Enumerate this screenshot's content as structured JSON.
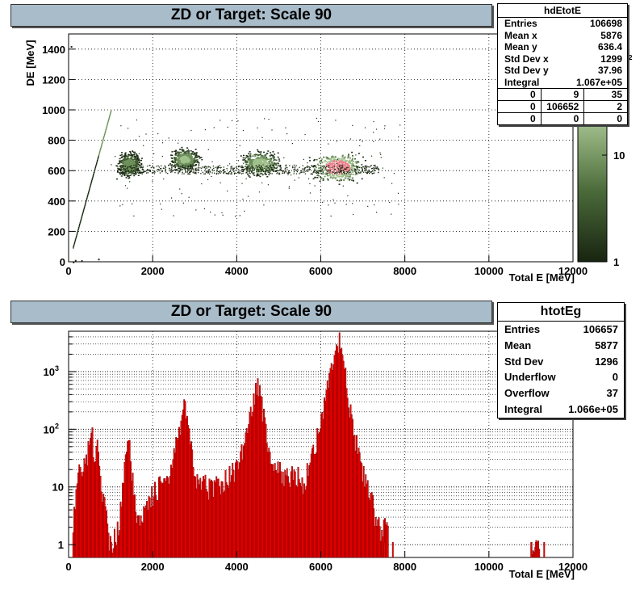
{
  "colors": {
    "title_bg": "#a9bcc9",
    "hist_fill": "#ff0000",
    "palette_low": "#1a2a12",
    "palette_high": "#9fbf8a",
    "peak_hot": "#e87080"
  },
  "top_panel": {
    "title": "ZD or Target: Scale 90",
    "stats": {
      "name": "hdEtotE",
      "rows": [
        {
          "label": "Entries",
          "value": "106698"
        },
        {
          "label": "Mean x",
          "value": "5876"
        },
        {
          "label": "Mean y",
          "value": "636.4"
        },
        {
          "label": "Std Dev x",
          "value": "1299"
        },
        {
          "label": "Std Dev y",
          "value": "37.96"
        },
        {
          "label": "Integral",
          "value": "1.067e+05"
        }
      ],
      "grid": [
        [
          "0",
          "9",
          "35"
        ],
        [
          "0",
          "106652",
          "2"
        ],
        [
          "0",
          "0",
          "0"
        ]
      ]
    },
    "palette": {
      "labels": [
        "10",
        "1"
      ],
      "extra_label": "2"
    }
  },
  "bottom_panel": {
    "title": "ZD or Target: Scale 90",
    "stats": {
      "name": "htotEg",
      "rows": [
        {
          "label": "Entries",
          "value": "106657"
        },
        {
          "label": "Mean",
          "value": "5877"
        },
        {
          "label": "Std Dev",
          "value": "1296"
        },
        {
          "label": "Underflow",
          "value": "0"
        },
        {
          "label": "Overflow",
          "value": "37"
        },
        {
          "label": "Integral",
          "value": "1.066e+05"
        }
      ]
    }
  },
  "chart_data": [
    {
      "type": "heatmap",
      "title": "ZD or Target: Scale 90",
      "xlabel": "Total E [MeV]",
      "ylabel": "DE [MeV]",
      "xlim": [
        0,
        12000
      ],
      "ylim": [
        0,
        1500
      ],
      "x_ticks": [
        0,
        2000,
        4000,
        6000,
        8000,
        10000,
        12000
      ],
      "y_ticks": [
        0,
        200,
        400,
        600,
        800,
        1000,
        1200,
        1400
      ],
      "grid": true,
      "z_scale": "log",
      "clusters": [
        {
          "x": 1430,
          "y": 640,
          "sx": 120,
          "sy": 35,
          "peak": 10
        },
        {
          "x": 2750,
          "y": 675,
          "sx": 150,
          "sy": 30,
          "peak": 14
        },
        {
          "x": 4550,
          "y": 650,
          "sx": 200,
          "sy": 35,
          "peak": 16
        },
        {
          "x": 6400,
          "y": 625,
          "sx": 260,
          "sy": 40,
          "peak": 40
        }
      ],
      "band": {
        "x_from": 1200,
        "x_to": 7400,
        "y": 610
      },
      "line": {
        "x_from": 100,
        "y_from": 100,
        "x_to": 1000,
        "y_to": 1000
      }
    },
    {
      "type": "bar",
      "title": "ZD or Target: Scale 90",
      "xlabel": "Total E [MeV]",
      "ylabel": "",
      "xlim": [
        0,
        12000
      ],
      "ylim": [
        0.6,
        5000
      ],
      "y_scale": "log",
      "x_ticks": [
        0,
        2000,
        4000,
        6000,
        8000,
        10000,
        12000
      ],
      "y_tick_labels": [
        "1",
        "10",
        "10^2",
        "10^3"
      ],
      "grid": true,
      "x": [
        100,
        200,
        300,
        400,
        500,
        550,
        600,
        700,
        800,
        1000,
        1200,
        1300,
        1350,
        1400,
        1450,
        1500,
        1600,
        1700,
        1800,
        2000,
        2200,
        2400,
        2500,
        2600,
        2700,
        2750,
        2800,
        2900,
        3000,
        3100,
        3200,
        3400,
        3600,
        3800,
        4000,
        4200,
        4300,
        4400,
        4500,
        4600,
        4700,
        4800,
        5000,
        5200,
        5400,
        5600,
        5800,
        6000,
        6100,
        6200,
        6300,
        6400,
        6450,
        6500,
        6600,
        6700,
        6800,
        6900,
        7000,
        7100,
        7200,
        7400,
        7600,
        11000,
        11200
      ],
      "values": [
        2,
        15,
        20,
        25,
        60,
        150,
        40,
        60,
        8,
        1,
        2,
        15,
        45,
        100,
        60,
        20,
        3,
        2,
        6,
        8,
        12,
        15,
        30,
        80,
        200,
        280,
        200,
        60,
        15,
        10,
        12,
        10,
        12,
        15,
        25,
        60,
        150,
        350,
        600,
        300,
        80,
        30,
        20,
        15,
        18,
        12,
        40,
        120,
        300,
        700,
        1500,
        3200,
        3400,
        2500,
        700,
        200,
        80,
        40,
        20,
        10,
        6,
        2,
        2,
        1,
        1
      ]
    }
  ]
}
